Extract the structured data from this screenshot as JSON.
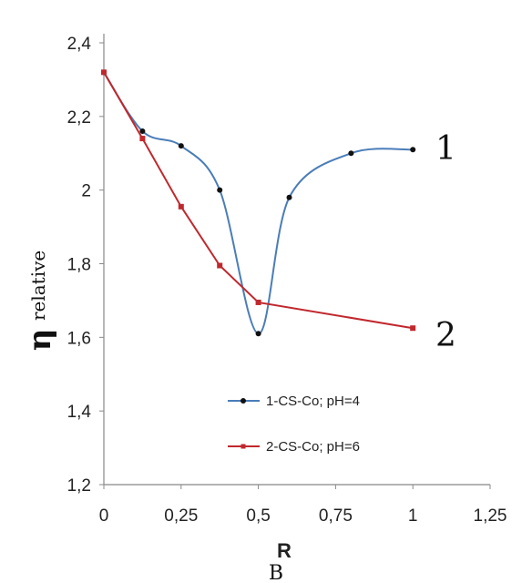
{
  "chart_data": {
    "type": "line",
    "xlabel": "R",
    "ylabel": "η",
    "ylabel_sub": "relative",
    "caption": "B",
    "xlim": [
      0,
      1.25
    ],
    "ylim": [
      1.2,
      2.4
    ],
    "x_ticks": [
      "0",
      "0,25",
      "0,5",
      "0,75",
      "1",
      "1,25"
    ],
    "x_tick_values": [
      0,
      0.25,
      0.5,
      0.75,
      1,
      1.25
    ],
    "y_ticks": [
      "1,2",
      "1,4",
      "1,6",
      "1,8",
      "2",
      "2,2",
      "2,4"
    ],
    "y_tick_values": [
      1.2,
      1.4,
      1.6,
      1.8,
      2.0,
      2.2,
      2.4
    ],
    "grid": false,
    "legend_position": "bottom-center",
    "series": [
      {
        "name": "1-CS-Co; pH=4",
        "end_label": "1",
        "color": "#4a7db8",
        "marker_color": "#111111",
        "x": [
          0,
          0.125,
          0.25,
          0.375,
          0.5,
          0.6,
          0.8,
          1.0
        ],
        "y": [
          2.32,
          2.16,
          2.12,
          2.0,
          1.61,
          1.98,
          2.1,
          2.11
        ]
      },
      {
        "name": "2-CS-Co; pH=6",
        "end_label": "2",
        "color": "#c0282d",
        "marker_color": "#c0282d",
        "x": [
          0,
          0.125,
          0.25,
          0.375,
          0.5,
          1.0
        ],
        "y": [
          2.32,
          2.14,
          1.955,
          1.795,
          1.695,
          1.625
        ]
      }
    ]
  }
}
